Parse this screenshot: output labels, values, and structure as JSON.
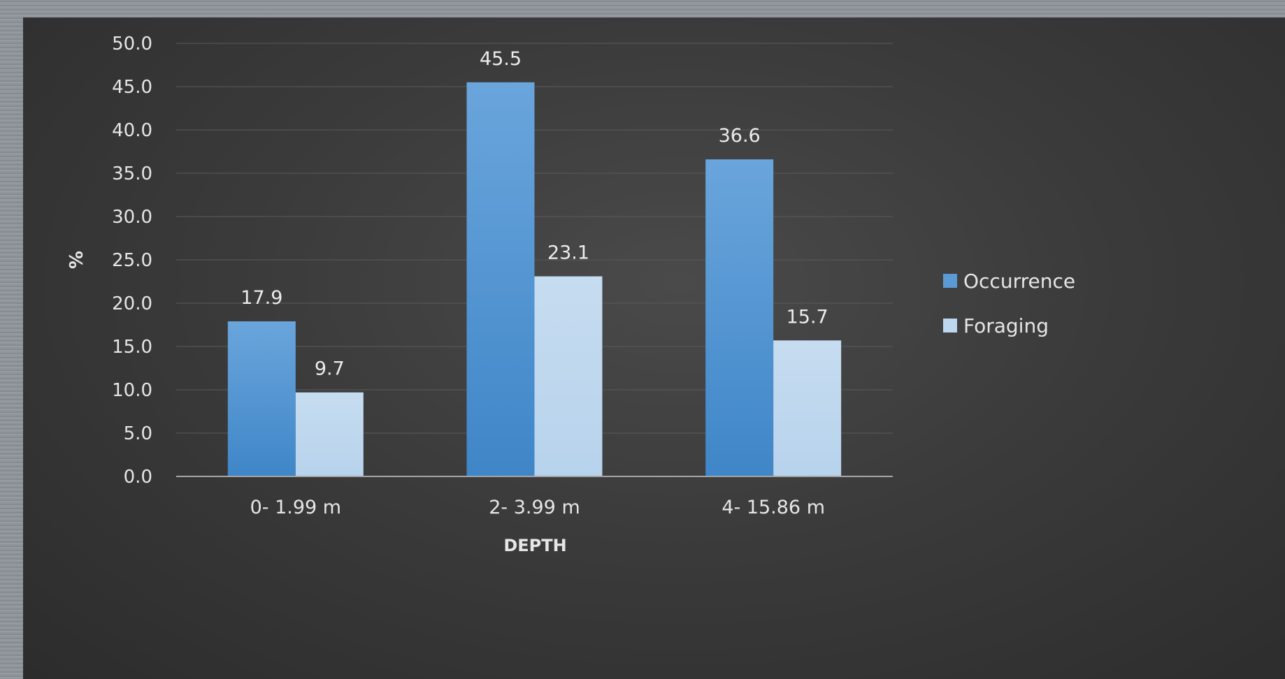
{
  "chart_data": {
    "type": "bar",
    "title": "",
    "xlabel": "DEPTH",
    "ylabel": "%",
    "categories": [
      "0- 1.99 m",
      "2- 3.99 m",
      "4- 15.86 m"
    ],
    "series": [
      {
        "name": "Occurrence",
        "values": [
          17.9,
          45.5,
          36.6
        ],
        "labels": [
          "17.9",
          "45.5",
          "36.6"
        ],
        "color": "#5b9bd5"
      },
      {
        "name": "Foraging",
        "values": [
          9.7,
          23.1,
          15.7
        ],
        "labels": [
          "9.7",
          "23.1",
          "15.7"
        ],
        "color": "#bdd7ee"
      }
    ],
    "ylim": [
      0,
      50
    ],
    "ytick_labels": [
      "0.0",
      "5.0",
      "10.0",
      "15.0",
      "20.0",
      "25.0",
      "30.0",
      "35.0",
      "40.0",
      "45.0",
      "50.0"
    ],
    "grid": true,
    "legend_position": "right"
  }
}
